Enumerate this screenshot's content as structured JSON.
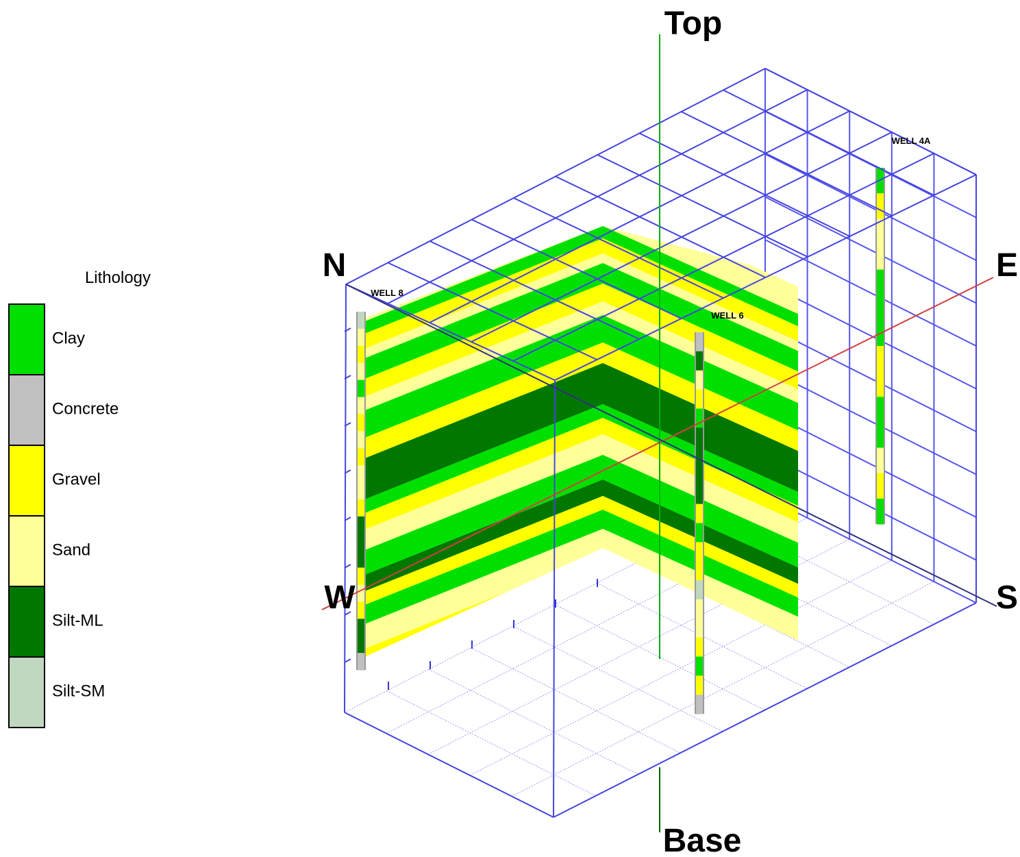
{
  "legend": {
    "title": "Lithology",
    "items": [
      {
        "label": "Clay",
        "color": "#00e000"
      },
      {
        "label": "Concrete",
        "color": "#c0c0c0"
      },
      {
        "label": "Gravel",
        "color": "#ffff00"
      },
      {
        "label": "Sand",
        "color": "#ffff99"
      },
      {
        "label": "Silt-ML",
        "color": "#007800"
      },
      {
        "label": "Silt-SM",
        "color": "#c0d8c0"
      }
    ]
  },
  "directions": {
    "top": "Top",
    "base": "Base",
    "north": "N",
    "east": "E",
    "south": "S",
    "west": "W"
  },
  "wells": [
    {
      "label": "WELL 8"
    },
    {
      "label": "WELL 6"
    },
    {
      "label": "WELL 4A"
    }
  ]
}
